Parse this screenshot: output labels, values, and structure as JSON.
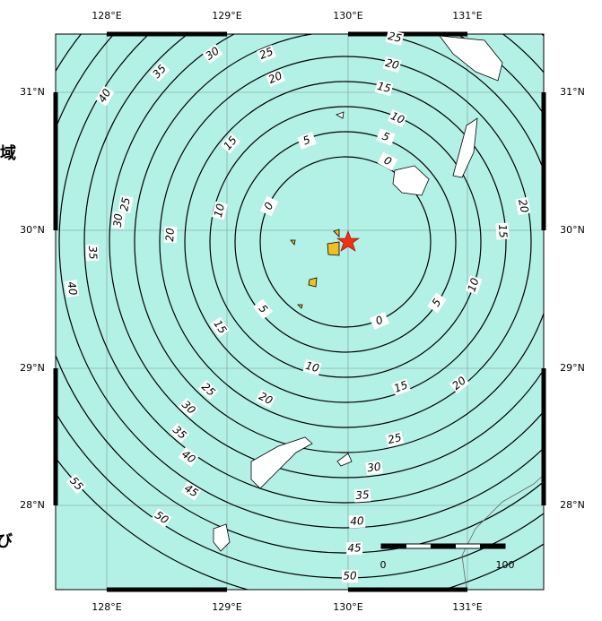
{
  "map": {
    "lon_labels": [
      "128°E",
      "129°E",
      "130°E",
      "131°E"
    ],
    "lat_labels": [
      "31°N",
      "30°N",
      "29°N",
      "28°N"
    ],
    "contour_levels": [
      0,
      5,
      10,
      15,
      20,
      25,
      30,
      35,
      40,
      45,
      50,
      55
    ],
    "contour_labels": [
      30,
      25,
      20,
      35,
      40,
      25,
      20,
      15,
      10,
      5,
      0,
      5,
      15,
      10,
      0,
      25,
      30,
      20,
      35,
      40,
      20,
      15,
      10,
      5,
      0,
      5,
      15,
      10,
      15,
      20,
      25,
      20,
      30,
      35,
      40,
      45,
      50,
      55,
      25,
      30,
      35,
      40,
      45,
      50
    ],
    "scale_labels": [
      "0",
      "100"
    ],
    "side_text": [
      "域",
      "び"
    ]
  }
}
